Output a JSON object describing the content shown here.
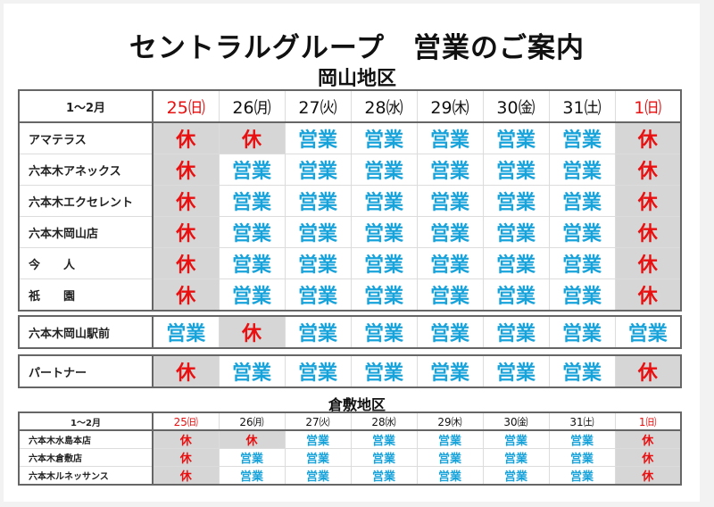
{
  "title": "セントラルグループ　営業のご案内",
  "colors": {
    "open": "#19a3db",
    "closed": "#e81010",
    "closed_bg": "#d6d6d6",
    "sunday": "#e81010"
  },
  "okayama": {
    "region_label": "岡山地区",
    "month_label": "1～2月",
    "days": [
      {
        "label": "25㈰",
        "sunday": true
      },
      {
        "label": "26㈪",
        "sunday": false
      },
      {
        "label": "27㈫",
        "sunday": false
      },
      {
        "label": "28㈬",
        "sunday": false
      },
      {
        "label": "29㈭",
        "sunday": false
      },
      {
        "label": "30㈮",
        "sunday": false
      },
      {
        "label": "31㈯",
        "sunday": false
      },
      {
        "label": "1㈰",
        "sunday": true
      }
    ],
    "group1": [
      {
        "name": "アマテラス",
        "status": [
          "休",
          "休",
          "営業",
          "営業",
          "営業",
          "営業",
          "営業",
          "休"
        ]
      },
      {
        "name": "六本木アネックス",
        "status": [
          "休",
          "営業",
          "営業",
          "営業",
          "営業",
          "営業",
          "営業",
          "休"
        ]
      },
      {
        "name": "六本木エクセレント",
        "status": [
          "休",
          "営業",
          "営業",
          "営業",
          "営業",
          "営業",
          "営業",
          "休"
        ]
      },
      {
        "name": "六本木岡山店",
        "status": [
          "休",
          "営業",
          "営業",
          "営業",
          "営業",
          "営業",
          "営業",
          "休"
        ]
      },
      {
        "name": "今　　人",
        "status": [
          "休",
          "営業",
          "営業",
          "営業",
          "営業",
          "営業",
          "営業",
          "休"
        ]
      },
      {
        "name": "祇　　園",
        "status": [
          "休",
          "営業",
          "営業",
          "営業",
          "営業",
          "営業",
          "営業",
          "休"
        ]
      }
    ],
    "group2": [
      {
        "name": "六本木岡山駅前",
        "status": [
          "営業",
          "休",
          "営業",
          "営業",
          "営業",
          "営業",
          "営業",
          "営業"
        ]
      }
    ],
    "group3": [
      {
        "name": "パートナー",
        "status": [
          "休",
          "営業",
          "営業",
          "営業",
          "営業",
          "営業",
          "営業",
          "休"
        ]
      }
    ]
  },
  "kurashiki": {
    "region_label": "倉敷地区",
    "month_label": "1～2月",
    "days": [
      {
        "label": "25㈰",
        "sunday": true
      },
      {
        "label": "26㈪",
        "sunday": false
      },
      {
        "label": "27㈫",
        "sunday": false
      },
      {
        "label": "28㈬",
        "sunday": false
      },
      {
        "label": "29㈭",
        "sunday": false
      },
      {
        "label": "30㈮",
        "sunday": false
      },
      {
        "label": "31㈯",
        "sunday": false
      },
      {
        "label": "1㈰",
        "sunday": true
      }
    ],
    "rows": [
      {
        "name": "六本木水島本店",
        "status": [
          "休",
          "休",
          "営業",
          "営業",
          "営業",
          "営業",
          "営業",
          "休"
        ]
      },
      {
        "name": "六本木倉敷店",
        "status": [
          "休",
          "営業",
          "営業",
          "営業",
          "営業",
          "営業",
          "営業",
          "休"
        ]
      },
      {
        "name": "六本木ルネッサンス",
        "status": [
          "休",
          "営業",
          "営業",
          "営業",
          "営業",
          "営業",
          "営業",
          "休"
        ]
      }
    ]
  }
}
